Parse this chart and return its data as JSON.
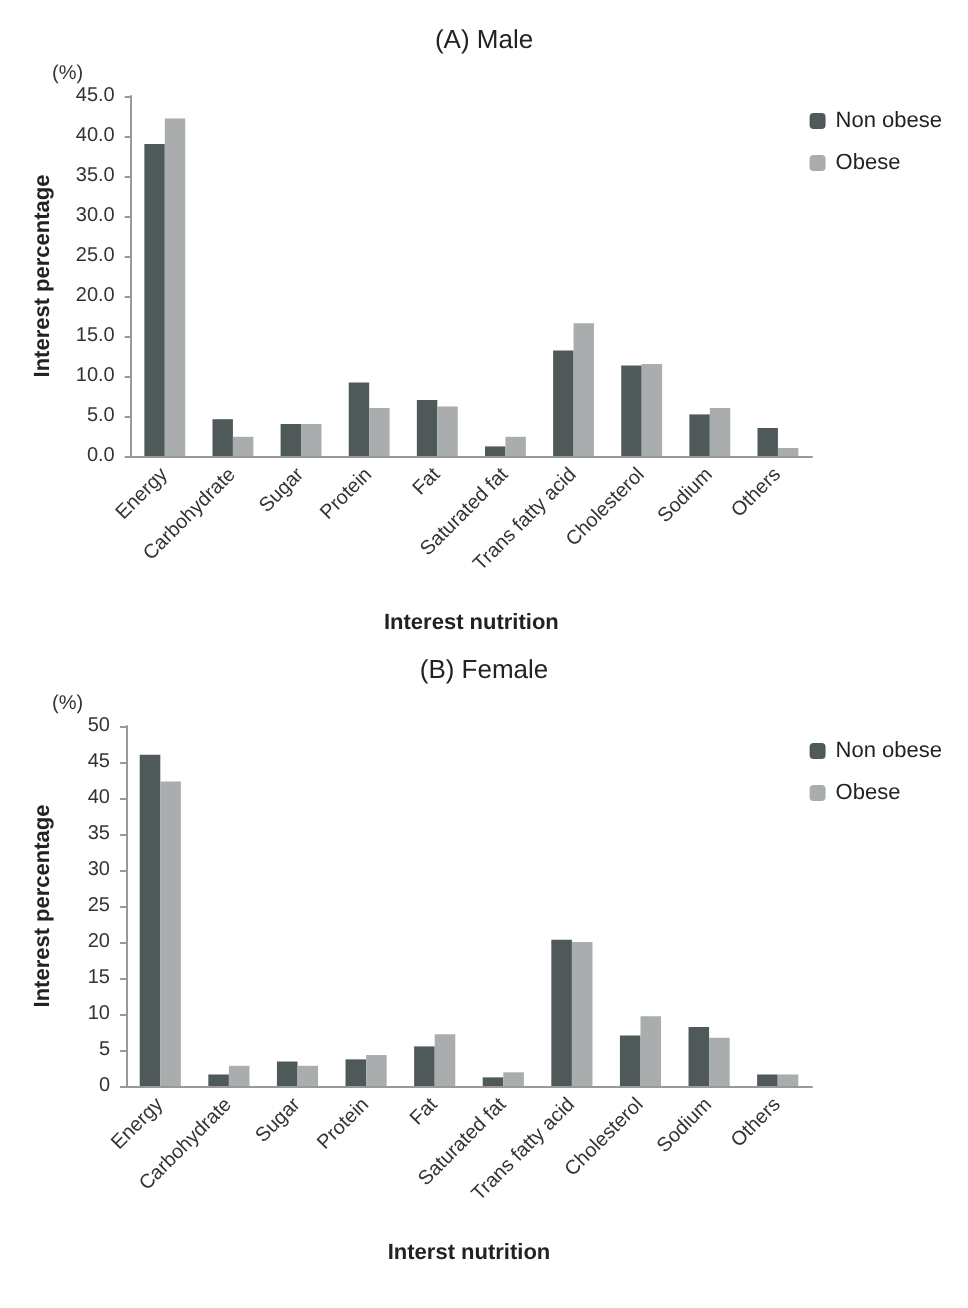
{
  "chart_data": [
    {
      "type": "bar",
      "title": "(A) Male",
      "xlabel": "Interest nutrition",
      "ylabel": "Interest percentage",
      "annotations": [
        "(%)"
      ],
      "categories": [
        "Energy",
        "Carbohydrate",
        "Sugar",
        "Protein",
        "Fat",
        "Saturated fat",
        "Trans fatty acid",
        "Cholesterol",
        "Sodium",
        "Others"
      ],
      "series": [
        {
          "name": "Non obese",
          "color": "#4f5959",
          "values": [
            39.0,
            4.6,
            4.0,
            9.2,
            7.0,
            1.2,
            13.2,
            11.3,
            5.2,
            3.5
          ]
        },
        {
          "name": "Obese",
          "color": "#a9adad",
          "values": [
            42.2,
            2.4,
            4.0,
            6.0,
            6.2,
            2.4,
            16.6,
            11.5,
            6.0,
            1.0
          ]
        }
      ],
      "ylim": [
        0,
        45
      ],
      "yticks": [
        {
          "value": 0,
          "label": "0.0"
        },
        {
          "value": 5,
          "label": "5.0"
        },
        {
          "value": 10,
          "label": "10.0"
        },
        {
          "value": 15,
          "label": "15.0"
        },
        {
          "value": 20,
          "label": "20.0"
        },
        {
          "value": 25,
          "label": "25.0"
        },
        {
          "value": 30,
          "label": "30.0"
        },
        {
          "value": 35,
          "label": "35.0"
        },
        {
          "value": 40,
          "label": "40.0"
        },
        {
          "value": 45,
          "label": "45.0"
        }
      ],
      "grid": false,
      "legend": "top right"
    },
    {
      "type": "bar",
      "title": "(B) Female",
      "xlabel": "Interst nutrition",
      "ylabel": "Interest percentage",
      "annotations": [
        "(%)"
      ],
      "categories": [
        "Energy",
        "Carbohydrate",
        "Sugar",
        "Protein",
        "Fat",
        "Saturated fat",
        "Trans fatty acid",
        "Cholesterol",
        "Sodium",
        "Others"
      ],
      "series": [
        {
          "name": "Non obese",
          "color": "#4f5959",
          "values": [
            46.0,
            1.6,
            3.4,
            3.7,
            5.5,
            1.2,
            20.3,
            7.0,
            8.2,
            1.6
          ]
        },
        {
          "name": "Obese",
          "color": "#a9adad",
          "values": [
            42.3,
            2.8,
            2.8,
            4.3,
            7.2,
            1.9,
            20.0,
            9.7,
            6.7,
            1.6
          ]
        }
      ],
      "ylim": [
        0,
        50
      ],
      "yticks": [
        0,
        5,
        10,
        15,
        20,
        25,
        30,
        35,
        40,
        45,
        50
      ],
      "grid": false,
      "legend": "top right"
    }
  ]
}
